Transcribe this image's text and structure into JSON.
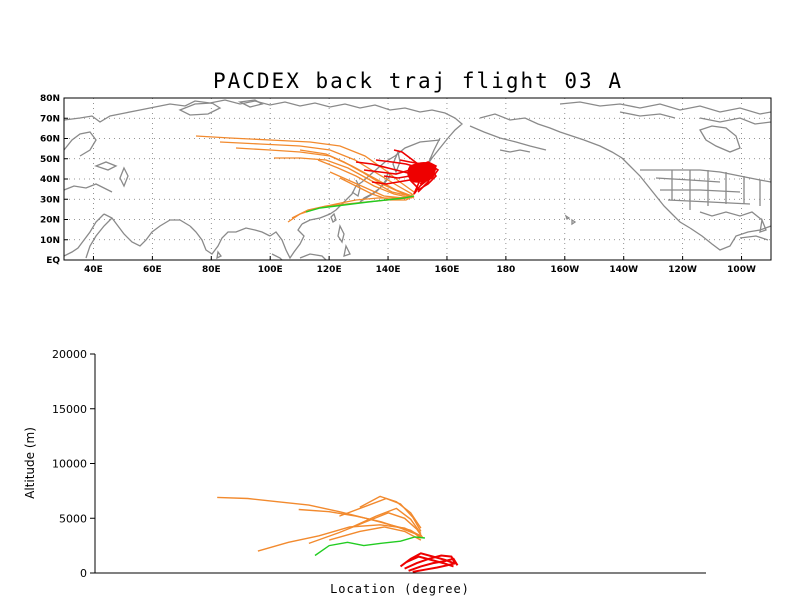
{
  "title": "PACDEX back traj flight 03 A",
  "map": {
    "lon_labels": [
      "40E",
      "60E",
      "80E",
      "100E",
      "120E",
      "140E",
      "160E",
      "180",
      "160W",
      "140W",
      "120W",
      "100W"
    ],
    "lat_labels": [
      "EQ",
      "10N",
      "20N",
      "30N",
      "40N",
      "50N",
      "60N",
      "70N",
      "80N"
    ],
    "lon_range": [
      30,
      270
    ],
    "lat_range": [
      0,
      80
    ]
  },
  "colors": {
    "orange": "#f28a2e",
    "red": "#ee0000",
    "green": "#22cc22",
    "coast": "#8a8a8a"
  },
  "chart_data": {
    "type": "line",
    "xlabel": "Location (degree)",
    "ylabel": "Altitude (m)",
    "ylim": [
      0,
      20000
    ],
    "yticks": [
      "0",
      "5000",
      "10000",
      "15000",
      "20000"
    ],
    "series": [
      {
        "name": "",
        "color": "orange",
        "points": [
          [
            -40,
            6900
          ],
          [
            -25,
            6800
          ],
          [
            -10,
            6500
          ],
          [
            5,
            6200
          ],
          [
            20,
            5600
          ],
          [
            35,
            4900
          ],
          [
            45,
            4400
          ],
          [
            55,
            3900
          ],
          [
            60,
            3300
          ]
        ]
      },
      {
        "name": "",
        "color": "orange",
        "points": [
          [
            0,
            5800
          ],
          [
            15,
            5600
          ],
          [
            28,
            5200
          ],
          [
            40,
            4700
          ],
          [
            50,
            4100
          ],
          [
            57,
            3600
          ],
          [
            60,
            3200
          ]
        ]
      },
      {
        "name": "",
        "color": "orange",
        "points": [
          [
            -20,
            2000
          ],
          [
            -5,
            2800
          ],
          [
            10,
            3400
          ],
          [
            25,
            4200
          ],
          [
            40,
            4400
          ],
          [
            52,
            4100
          ],
          [
            60,
            3400
          ]
        ]
      },
      {
        "name": "",
        "color": "orange",
        "points": [
          [
            5,
            2700
          ],
          [
            20,
            3700
          ],
          [
            32,
            4600
          ],
          [
            44,
            5500
          ],
          [
            52,
            5000
          ],
          [
            58,
            4000
          ],
          [
            61,
            3200
          ]
        ]
      },
      {
        "name": "",
        "color": "orange",
        "points": [
          [
            20,
            5200
          ],
          [
            33,
            6100
          ],
          [
            43,
            6800
          ],
          [
            50,
            6300
          ],
          [
            56,
            5100
          ],
          [
            60,
            3800
          ]
        ]
      },
      {
        "name": "",
        "color": "orange",
        "points": [
          [
            30,
            6000
          ],
          [
            40,
            7000
          ],
          [
            48,
            6500
          ],
          [
            55,
            5500
          ],
          [
            60,
            4100
          ]
        ]
      },
      {
        "name": "",
        "color": "orange",
        "points": [
          [
            25,
            4100
          ],
          [
            38,
            5200
          ],
          [
            48,
            5900
          ],
          [
            55,
            4900
          ],
          [
            60,
            3600
          ]
        ]
      },
      {
        "name": "",
        "color": "orange",
        "points": [
          [
            15,
            3000
          ],
          [
            30,
            3800
          ],
          [
            42,
            4200
          ],
          [
            52,
            3800
          ],
          [
            60,
            3000
          ]
        ]
      },
      {
        "name": "",
        "color": "green",
        "points": [
          [
            8,
            1600
          ],
          [
            15,
            2500
          ],
          [
            24,
            2800
          ],
          [
            32,
            2500
          ],
          [
            40,
            2700
          ],
          [
            50,
            2900
          ],
          [
            57,
            3300
          ],
          [
            62,
            3200
          ]
        ]
      },
      {
        "name": "",
        "color": "red",
        "points": [
          [
            50,
            600
          ],
          [
            55,
            1300
          ],
          [
            60,
            1800
          ],
          [
            66,
            1500
          ],
          [
            72,
            1200
          ],
          [
            76,
            900
          ]
        ]
      },
      {
        "name": "",
        "color": "red",
        "points": [
          [
            52,
            400
          ],
          [
            58,
            900
          ],
          [
            64,
            1300
          ],
          [
            70,
            1600
          ],
          [
            75,
            1500
          ],
          [
            77,
            800
          ]
        ]
      },
      {
        "name": "",
        "color": "red",
        "points": [
          [
            54,
            200
          ],
          [
            60,
            600
          ],
          [
            66,
            900
          ],
          [
            72,
            1100
          ],
          [
            76,
            1300
          ],
          [
            78,
            700
          ]
        ]
      },
      {
        "name": "",
        "color": "red",
        "points": [
          [
            56,
            100
          ],
          [
            62,
            300
          ],
          [
            68,
            500
          ],
          [
            73,
            700
          ],
          [
            77,
            900
          ]
        ]
      },
      {
        "name": "",
        "color": "red",
        "points": [
          [
            53,
            1000
          ],
          [
            59,
            1500
          ],
          [
            65,
            1200
          ],
          [
            71,
            900
          ],
          [
            76,
            600
          ]
        ]
      }
    ]
  }
}
